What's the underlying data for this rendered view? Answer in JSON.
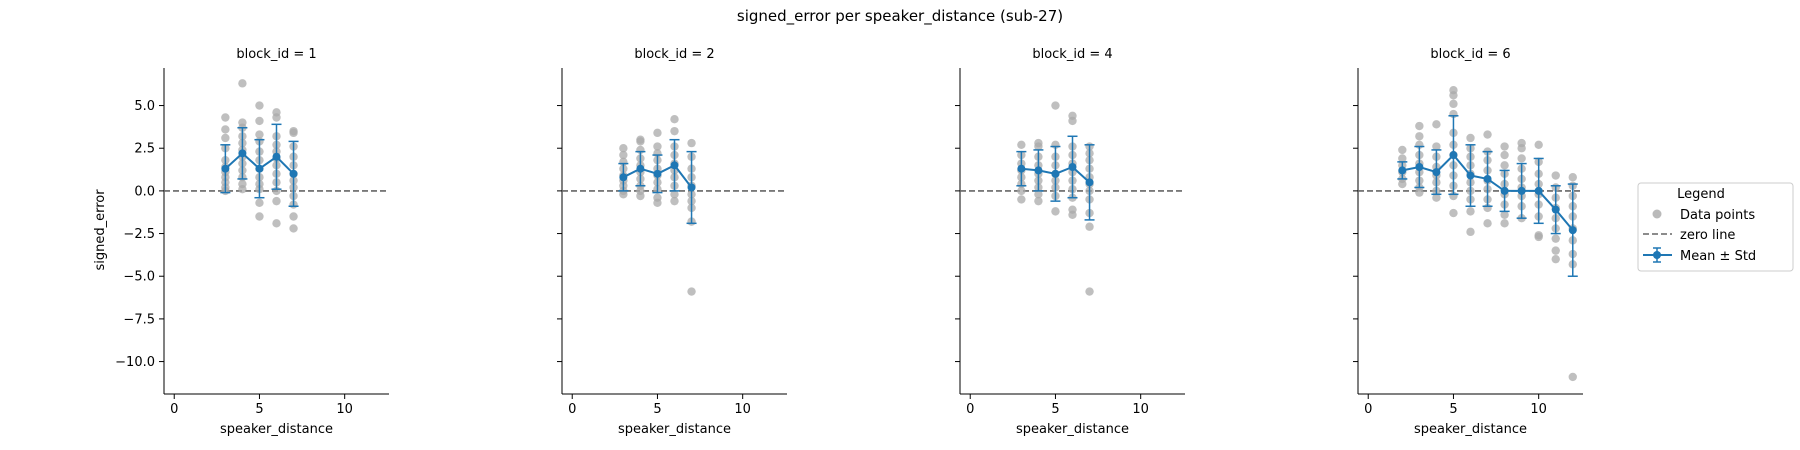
{
  "chart_data": {
    "type": "scatter",
    "title": "signed_error per speaker_distance (sub-27)",
    "xlabel": "speaker_distance",
    "ylabel": "signed_error",
    "xlim": [
      -0.6,
      12.6
    ],
    "ylim": [
      -11.9,
      7.2
    ],
    "xticks": [
      0,
      5,
      10
    ],
    "xtick_labels": [
      "0",
      "5",
      "10"
    ],
    "yticks": [
      5.0,
      2.5,
      0.0,
      -2.5,
      -5.0,
      -7.5,
      -10.0
    ],
    "ytick_labels": [
      "5.0",
      "2.5",
      "0.0",
      "−2.5",
      "−5.0",
      "−7.5",
      "−10.0"
    ],
    "grid": false,
    "zero_line": 0,
    "legend": {
      "title": "Legend",
      "placement": "right",
      "entries": [
        "Data points",
        "zero line",
        "Mean ± Std"
      ]
    },
    "colors": {
      "points": "#a9a9a9",
      "mean": "#1f77b4",
      "zero_line": "#666666"
    },
    "panels": [
      {
        "title": "block_id = 1",
        "points": [
          [
            3,
            4.3
          ],
          [
            3,
            3.6
          ],
          [
            3,
            3.1
          ],
          [
            3,
            2.5
          ],
          [
            3,
            1.8
          ],
          [
            3,
            1.4
          ],
          [
            3,
            1.1
          ],
          [
            3,
            0.8
          ],
          [
            3,
            0.5
          ],
          [
            3,
            0.2
          ],
          [
            3,
            0.0
          ],
          [
            4,
            6.3
          ],
          [
            4,
            4.0
          ],
          [
            4,
            3.7
          ],
          [
            4,
            3.2
          ],
          [
            4,
            2.8
          ],
          [
            4,
            2.4
          ],
          [
            4,
            2.0
          ],
          [
            4,
            1.6
          ],
          [
            4,
            1.2
          ],
          [
            4,
            0.8
          ],
          [
            4,
            0.4
          ],
          [
            4,
            0.1
          ],
          [
            5,
            5.0
          ],
          [
            5,
            4.1
          ],
          [
            5,
            3.3
          ],
          [
            5,
            2.9
          ],
          [
            5,
            2.3
          ],
          [
            5,
            1.8
          ],
          [
            5,
            1.3
          ],
          [
            5,
            0.8
          ],
          [
            5,
            0.4
          ],
          [
            5,
            0.1
          ],
          [
            5,
            -0.7
          ],
          [
            5,
            -1.5
          ],
          [
            6,
            4.6
          ],
          [
            6,
            4.3
          ],
          [
            6,
            3.2
          ],
          [
            6,
            2.7
          ],
          [
            6,
            2.3
          ],
          [
            6,
            1.9
          ],
          [
            6,
            1.5
          ],
          [
            6,
            1.0
          ],
          [
            6,
            0.5
          ],
          [
            6,
            0.0
          ],
          [
            6,
            -0.6
          ],
          [
            6,
            -1.9
          ],
          [
            7,
            3.5
          ],
          [
            7,
            3.4
          ],
          [
            7,
            2.6
          ],
          [
            7,
            2.0
          ],
          [
            7,
            1.5
          ],
          [
            7,
            1.0
          ],
          [
            7,
            0.6
          ],
          [
            7,
            0.2
          ],
          [
            7,
            -0.3
          ],
          [
            7,
            -0.8
          ],
          [
            7,
            -1.5
          ],
          [
            7,
            -2.2
          ]
        ],
        "mean": [
          [
            3,
            1.3
          ],
          [
            4,
            2.2
          ],
          [
            5,
            1.3
          ],
          [
            6,
            2.0
          ],
          [
            7,
            1.0
          ]
        ],
        "std": [
          1.4,
          1.5,
          1.7,
          1.9,
          1.9
        ]
      },
      {
        "title": "block_id = 2",
        "points": [
          [
            3,
            2.5
          ],
          [
            3,
            2.1
          ],
          [
            3,
            1.7
          ],
          [
            3,
            1.3
          ],
          [
            3,
            0.9
          ],
          [
            3,
            0.6
          ],
          [
            3,
            0.3
          ],
          [
            3,
            0.0
          ],
          [
            3,
            -0.2
          ],
          [
            4,
            3.0
          ],
          [
            4,
            2.9
          ],
          [
            4,
            2.4
          ],
          [
            4,
            1.9
          ],
          [
            4,
            1.5
          ],
          [
            4,
            1.1
          ],
          [
            4,
            0.7
          ],
          [
            4,
            0.3
          ],
          [
            4,
            0.0
          ],
          [
            4,
            -0.3
          ],
          [
            5,
            3.4
          ],
          [
            5,
            2.6
          ],
          [
            5,
            2.2
          ],
          [
            5,
            1.8
          ],
          [
            5,
            1.3
          ],
          [
            5,
            0.9
          ],
          [
            5,
            0.5
          ],
          [
            5,
            0.1
          ],
          [
            5,
            -0.4
          ],
          [
            5,
            -0.7
          ],
          [
            6,
            4.2
          ],
          [
            6,
            3.5
          ],
          [
            6,
            2.6
          ],
          [
            6,
            2.1
          ],
          [
            6,
            1.6
          ],
          [
            6,
            1.2
          ],
          [
            6,
            0.8
          ],
          [
            6,
            0.3
          ],
          [
            6,
            -0.2
          ],
          [
            6,
            -0.6
          ],
          [
            7,
            2.8
          ],
          [
            7,
            2.0
          ],
          [
            7,
            1.3
          ],
          [
            7,
            0.8
          ],
          [
            7,
            0.3
          ],
          [
            7,
            -0.2
          ],
          [
            7,
            -0.6
          ],
          [
            7,
            -1.0
          ],
          [
            7,
            -1.8
          ],
          [
            7,
            -5.9
          ]
        ],
        "mean": [
          [
            3,
            0.8
          ],
          [
            4,
            1.3
          ],
          [
            5,
            1.0
          ],
          [
            6,
            1.5
          ],
          [
            7,
            0.2
          ]
        ],
        "std": [
          0.8,
          1.0,
          1.1,
          1.5,
          2.1
        ]
      },
      {
        "title": "block_id = 4",
        "points": [
          [
            3,
            2.7
          ],
          [
            3,
            2.1
          ],
          [
            3,
            1.6
          ],
          [
            3,
            1.2
          ],
          [
            3,
            0.8
          ],
          [
            3,
            0.4
          ],
          [
            3,
            0.0
          ],
          [
            3,
            -0.5
          ],
          [
            4,
            2.8
          ],
          [
            4,
            2.6
          ],
          [
            4,
            2.0
          ],
          [
            4,
            1.5
          ],
          [
            4,
            1.0
          ],
          [
            4,
            0.6
          ],
          [
            4,
            0.2
          ],
          [
            4,
            -0.2
          ],
          [
            4,
            -0.6
          ],
          [
            5,
            5.0
          ],
          [
            5,
            2.7
          ],
          [
            5,
            2.0
          ],
          [
            5,
            1.5
          ],
          [
            5,
            1.0
          ],
          [
            5,
            0.6
          ],
          [
            5,
            0.2
          ],
          [
            5,
            -0.3
          ],
          [
            5,
            -1.2
          ],
          [
            6,
            4.4
          ],
          [
            6,
            4.1
          ],
          [
            6,
            2.6
          ],
          [
            6,
            2.1
          ],
          [
            6,
            1.6
          ],
          [
            6,
            1.1
          ],
          [
            6,
            0.6
          ],
          [
            6,
            0.1
          ],
          [
            6,
            -0.4
          ],
          [
            6,
            -1.1
          ],
          [
            6,
            -1.4
          ],
          [
            7,
            2.6
          ],
          [
            7,
            2.2
          ],
          [
            7,
            1.8
          ],
          [
            7,
            1.3
          ],
          [
            7,
            0.8
          ],
          [
            7,
            0.4
          ],
          [
            7,
            0.0
          ],
          [
            7,
            -0.5
          ],
          [
            7,
            -1.3
          ],
          [
            7,
            -2.1
          ],
          [
            7,
            -5.9
          ]
        ],
        "mean": [
          [
            3,
            1.3
          ],
          [
            4,
            1.2
          ],
          [
            5,
            1.0
          ],
          [
            6,
            1.4
          ],
          [
            7,
            0.5
          ]
        ],
        "std": [
          1.0,
          1.2,
          1.6,
          1.8,
          2.2
        ]
      },
      {
        "title": "block_id = 6",
        "points": [
          [
            2,
            2.4
          ],
          [
            2,
            1.9
          ],
          [
            2,
            1.5
          ],
          [
            2,
            1.1
          ],
          [
            2,
            0.7
          ],
          [
            2,
            0.4
          ],
          [
            3,
            3.8
          ],
          [
            3,
            3.2
          ],
          [
            3,
            2.7
          ],
          [
            3,
            2.1
          ],
          [
            3,
            1.6
          ],
          [
            3,
            1.1
          ],
          [
            3,
            0.6
          ],
          [
            3,
            0.2
          ],
          [
            3,
            -0.1
          ],
          [
            4,
            3.9
          ],
          [
            4,
            2.6
          ],
          [
            4,
            2.0
          ],
          [
            4,
            1.4
          ],
          [
            4,
            0.9
          ],
          [
            4,
            0.5
          ],
          [
            4,
            0.0
          ],
          [
            4,
            -0.4
          ],
          [
            5,
            5.9
          ],
          [
            5,
            5.6
          ],
          [
            5,
            5.1
          ],
          [
            5,
            4.5
          ],
          [
            5,
            3.4
          ],
          [
            5,
            2.7
          ],
          [
            5,
            2.1
          ],
          [
            5,
            1.5
          ],
          [
            5,
            0.9
          ],
          [
            5,
            0.3
          ],
          [
            5,
            -0.3
          ],
          [
            5,
            -1.3
          ],
          [
            6,
            3.1
          ],
          [
            6,
            2.5
          ],
          [
            6,
            2.0
          ],
          [
            6,
            1.5
          ],
          [
            6,
            1.0
          ],
          [
            6,
            0.5
          ],
          [
            6,
            0.0
          ],
          [
            6,
            -0.5
          ],
          [
            6,
            -1.2
          ],
          [
            6,
            -2.4
          ],
          [
            7,
            3.3
          ],
          [
            7,
            2.3
          ],
          [
            7,
            1.8
          ],
          [
            7,
            1.2
          ],
          [
            7,
            0.6
          ],
          [
            7,
            0.1
          ],
          [
            7,
            -0.5
          ],
          [
            7,
            -1.0
          ],
          [
            7,
            -1.9
          ],
          [
            8,
            2.6
          ],
          [
            8,
            2.1
          ],
          [
            8,
            1.5
          ],
          [
            8,
            1.0
          ],
          [
            8,
            0.4
          ],
          [
            8,
            -0.2
          ],
          [
            8,
            -0.8
          ],
          [
            8,
            -1.4
          ],
          [
            8,
            -1.9
          ],
          [
            9,
            2.8
          ],
          [
            9,
            2.5
          ],
          [
            9,
            1.9
          ],
          [
            9,
            1.3
          ],
          [
            9,
            0.7
          ],
          [
            9,
            0.2
          ],
          [
            9,
            -0.3
          ],
          [
            9,
            -0.9
          ],
          [
            9,
            -1.6
          ],
          [
            10,
            2.7
          ],
          [
            10,
            1.7
          ],
          [
            10,
            1.0
          ],
          [
            10,
            0.4
          ],
          [
            10,
            -0.2
          ],
          [
            10,
            -0.8
          ],
          [
            10,
            -1.5
          ],
          [
            10,
            -2.6
          ],
          [
            10,
            -2.7
          ],
          [
            11,
            0.9
          ],
          [
            11,
            0.2
          ],
          [
            11,
            -0.4
          ],
          [
            11,
            -1.0
          ],
          [
            11,
            -1.6
          ],
          [
            11,
            -2.2
          ],
          [
            11,
            -2.8
          ],
          [
            11,
            -3.5
          ],
          [
            11,
            -4.0
          ],
          [
            12,
            0.8
          ],
          [
            12,
            0.3
          ],
          [
            12,
            -0.3
          ],
          [
            12,
            -0.9
          ],
          [
            12,
            -1.5
          ],
          [
            12,
            -2.2
          ],
          [
            12,
            -2.9
          ],
          [
            12,
            -3.7
          ],
          [
            12,
            -4.3
          ],
          [
            12,
            -10.9
          ]
        ],
        "mean": [
          [
            2,
            1.2
          ],
          [
            3,
            1.4
          ],
          [
            4,
            1.1
          ],
          [
            5,
            2.1
          ],
          [
            6,
            0.9
          ],
          [
            7,
            0.7
          ],
          [
            8,
            0.0
          ],
          [
            9,
            0.0
          ],
          [
            10,
            0.0
          ],
          [
            11,
            -1.1
          ],
          [
            12,
            -2.3
          ]
        ],
        "std": [
          0.5,
          1.2,
          1.3,
          2.3,
          1.8,
          1.6,
          1.2,
          1.6,
          1.9,
          1.4,
          2.7
        ]
      }
    ]
  }
}
